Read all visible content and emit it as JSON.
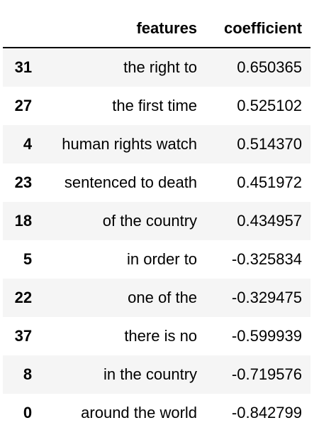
{
  "table": {
    "columns": {
      "index": "",
      "features": "features",
      "coefficient": "coefficient"
    },
    "rows": [
      {
        "index": "31",
        "features": "the right to",
        "coefficient": "0.650365"
      },
      {
        "index": "27",
        "features": "the first time",
        "coefficient": "0.525102"
      },
      {
        "index": "4",
        "features": "human rights watch",
        "coefficient": "0.514370"
      },
      {
        "index": "23",
        "features": "sentenced to death",
        "coefficient": "0.451972"
      },
      {
        "index": "18",
        "features": "of the country",
        "coefficient": "0.434957"
      },
      {
        "index": "5",
        "features": "in order to",
        "coefficient": "-0.325834"
      },
      {
        "index": "22",
        "features": "one of the",
        "coefficient": "-0.329475"
      },
      {
        "index": "37",
        "features": "there is no",
        "coefficient": "-0.599939"
      },
      {
        "index": "8",
        "features": "in the country",
        "coefficient": "-0.719576"
      },
      {
        "index": "0",
        "features": "around the world",
        "coefficient": "-0.842799"
      }
    ]
  }
}
